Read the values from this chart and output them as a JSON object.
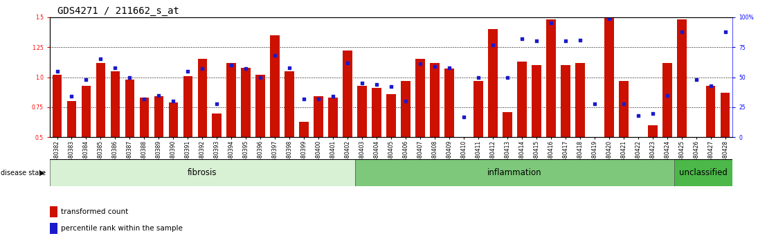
{
  "title": "GDS4271 / 211662_s_at",
  "samples": [
    "GSM380382",
    "GSM380383",
    "GSM380384",
    "GSM380385",
    "GSM380386",
    "GSM380387",
    "GSM380388",
    "GSM380389",
    "GSM380390",
    "GSM380391",
    "GSM380392",
    "GSM380393",
    "GSM380394",
    "GSM380395",
    "GSM380396",
    "GSM380397",
    "GSM380398",
    "GSM380399",
    "GSM380400",
    "GSM380401",
    "GSM380402",
    "GSM380403",
    "GSM380404",
    "GSM380405",
    "GSM380406",
    "GSM380407",
    "GSM380408",
    "GSM380409",
    "GSM380410",
    "GSM380411",
    "GSM380412",
    "GSM380413",
    "GSM380414",
    "GSM380415",
    "GSM380416",
    "GSM380417",
    "GSM380418",
    "GSM380419",
    "GSM380420",
    "GSM380421",
    "GSM380422",
    "GSM380423",
    "GSM380424",
    "GSM380425",
    "GSM380426",
    "GSM380427",
    "GSM380428"
  ],
  "bar_heights": [
    1.02,
    0.8,
    0.93,
    1.12,
    1.05,
    0.98,
    0.83,
    0.84,
    0.79,
    1.01,
    1.15,
    0.7,
    1.12,
    1.08,
    1.02,
    1.35,
    1.05,
    0.63,
    0.84,
    0.83,
    1.22,
    0.93,
    0.91,
    0.86,
    0.97,
    1.15,
    1.12,
    1.07,
    0.49,
    0.97,
    1.4,
    0.71,
    1.13,
    1.1,
    1.48,
    1.1,
    1.12,
    0.49,
    1.5,
    0.97,
    0.49,
    0.6,
    1.12,
    1.48,
    0.49,
    0.93,
    0.87
  ],
  "percentile_ranks": [
    55,
    34,
    48,
    65,
    58,
    50,
    32,
    35,
    30,
    55,
    57,
    28,
    60,
    57,
    50,
    68,
    58,
    32,
    32,
    34,
    62,
    45,
    44,
    42,
    30,
    61,
    59,
    58,
    17,
    50,
    77,
    50,
    82,
    80,
    95,
    80,
    81,
    28,
    99,
    28,
    18,
    20,
    35,
    88,
    48,
    43,
    88
  ],
  "groups": [
    {
      "label": "fibrosis",
      "start": 0,
      "end": 21,
      "color": "#d8f0d4"
    },
    {
      "label": "inflammation",
      "start": 21,
      "end": 43,
      "color": "#7dc87a"
    },
    {
      "label": "unclassified",
      "start": 43,
      "end": 47,
      "color": "#4db84a"
    }
  ],
  "bar_color": "#cc1100",
  "dot_color": "#1a1acc",
  "ylim_left": [
    0.5,
    1.5
  ],
  "ylim_right": [
    0,
    100
  ],
  "yticks_left": [
    0.5,
    0.75,
    1.0,
    1.25,
    1.5
  ],
  "yticks_right": [
    0,
    25,
    50,
    75,
    100
  ],
  "yticklabels_right": [
    "0",
    "25",
    "50",
    "75",
    "100%"
  ],
  "hlines": [
    0.75,
    1.0,
    1.25
  ],
  "bg_color": "#ffffff",
  "title_fontsize": 10,
  "tick_fontsize": 5.5,
  "group_label_fontsize": 8.5
}
